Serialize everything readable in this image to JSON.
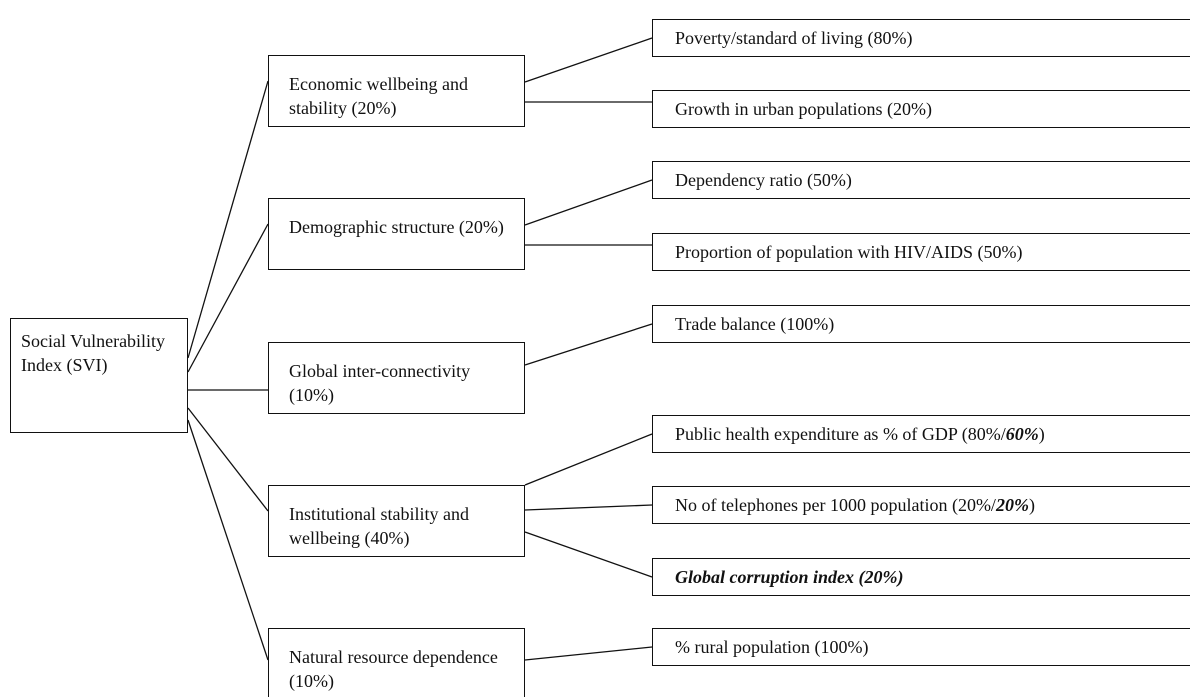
{
  "root": {
    "label": "Social Vulnerability Index (SVI)"
  },
  "groups": [
    {
      "label": "Economic wellbeing and stability (20%)",
      "indicators": [
        {
          "parts": [
            {
              "text": "Poverty/standard of living (80%)"
            }
          ]
        },
        {
          "parts": [
            {
              "text": "Growth in urban populations (20%)"
            }
          ]
        }
      ]
    },
    {
      "label": "Demographic structure (20%)",
      "indicators": [
        {
          "parts": [
            {
              "text": "Dependency ratio (50%)"
            }
          ]
        },
        {
          "parts": [
            {
              "text": "Proportion of population with HIV/AIDS (50%)"
            }
          ]
        }
      ]
    },
    {
      "label": "Global inter-connectivity (10%)",
      "indicators": [
        {
          "parts": [
            {
              "text": "Trade balance (100%)"
            }
          ]
        }
      ]
    },
    {
      "label": "Institutional stability and wellbeing (40%)",
      "indicators": [
        {
          "parts": [
            {
              "text": "Public health expenditure as % of GDP (80%/"
            },
            {
              "text": "60%",
              "bold_italic": true
            },
            {
              "text": ")"
            }
          ]
        },
        {
          "parts": [
            {
              "text": "No of telephones per 1000 population (20%/"
            },
            {
              "text": "20%",
              "bold_italic": true
            },
            {
              "text": ")"
            }
          ]
        },
        {
          "parts": [
            {
              "text": "Global corruption index (20%)",
              "bold_italic": true
            }
          ]
        }
      ]
    },
    {
      "label": "Natural resource dependence (10%)",
      "indicators": [
        {
          "parts": [
            {
              "text": "% rural population (100%)"
            }
          ]
        }
      ]
    }
  ]
}
